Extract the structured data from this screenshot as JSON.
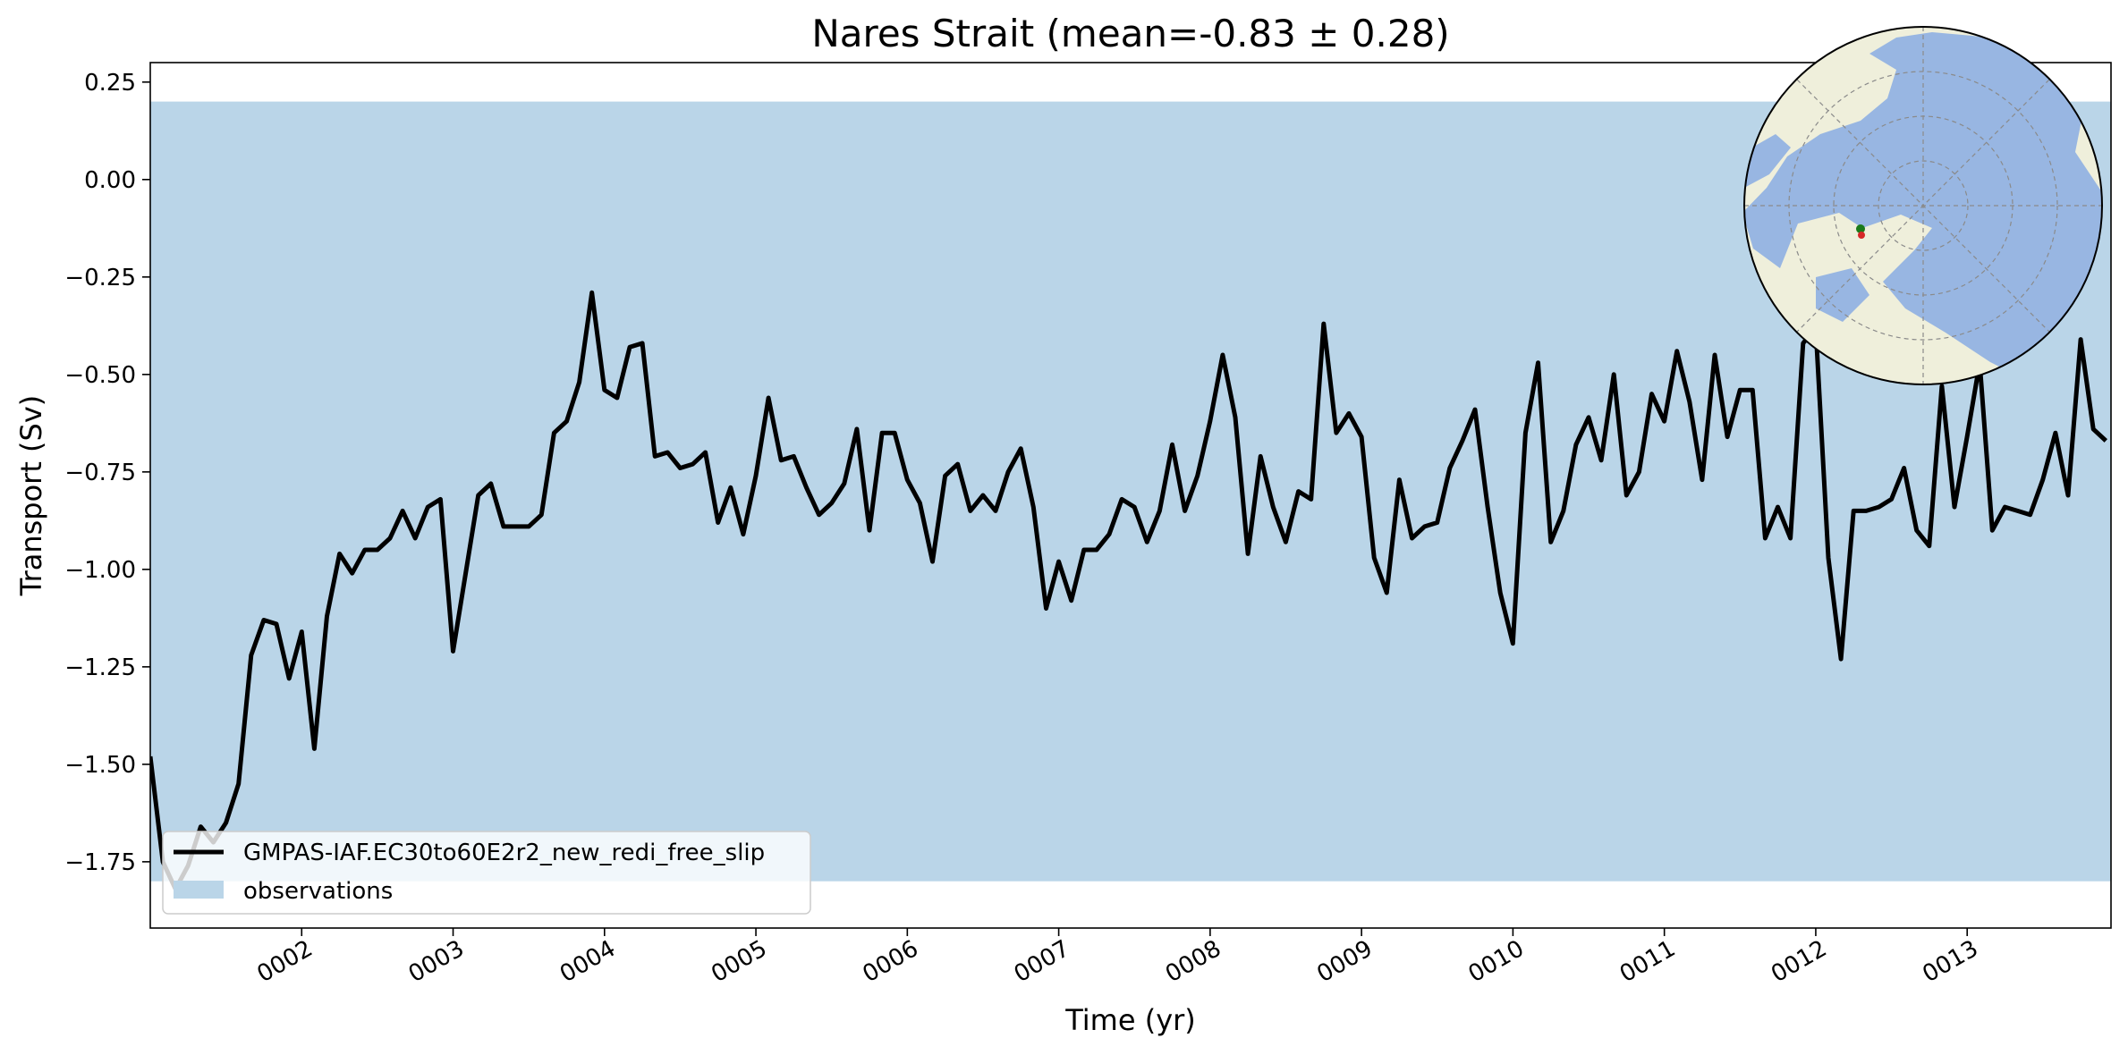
{
  "chart_data": {
    "type": "line",
    "title": "Nares Strait (mean=-0.83 ± 0.28)",
    "xlabel": "Time (yr)",
    "ylabel": "Transport (Sv)",
    "xlim": [
      1.0,
      13.95
    ],
    "ylim": [
      -1.92,
      0.3
    ],
    "x_ticks": [
      {
        "value": 2,
        "label": "0002"
      },
      {
        "value": 3,
        "label": "0003"
      },
      {
        "value": 4,
        "label": "0004"
      },
      {
        "value": 5,
        "label": "0005"
      },
      {
        "value": 6,
        "label": "0006"
      },
      {
        "value": 7,
        "label": "0007"
      },
      {
        "value": 8,
        "label": "0008"
      },
      {
        "value": 9,
        "label": "0009"
      },
      {
        "value": 10,
        "label": "0010"
      },
      {
        "value": 11,
        "label": "0011"
      },
      {
        "value": 12,
        "label": "0012"
      },
      {
        "value": 13,
        "label": "0013"
      }
    ],
    "y_ticks": [
      {
        "value": 0.25,
        "label": "0.25"
      },
      {
        "value": 0.0,
        "label": "0.00"
      },
      {
        "value": -0.25,
        "label": "−0.25"
      },
      {
        "value": -0.5,
        "label": "−0.50"
      },
      {
        "value": -0.75,
        "label": "−0.75"
      },
      {
        "value": -1.0,
        "label": "−1.00"
      },
      {
        "value": -1.25,
        "label": "−1.25"
      },
      {
        "value": -1.5,
        "label": "−1.50"
      },
      {
        "value": -1.75,
        "label": "−1.75"
      }
    ],
    "grid": false,
    "legend_position": "lower-left",
    "observation_band": {
      "name": "observations",
      "ymin": -1.8,
      "ymax": 0.2,
      "color": "#bad5e8"
    },
    "series": [
      {
        "name": "GMPAS-IAF.EC30to60E2r2_new_redi_free_slip",
        "color": "#000000",
        "x_start": 1.0,
        "x_step": 0.08333,
        "values": [
          -1.48,
          -1.75,
          -1.82,
          -1.76,
          -1.66,
          -1.7,
          -1.65,
          -1.55,
          -1.22,
          -1.13,
          -1.14,
          -1.28,
          -1.16,
          -1.46,
          -1.12,
          -0.96,
          -1.01,
          -0.95,
          -0.95,
          -0.92,
          -0.85,
          -0.92,
          -0.84,
          -0.82,
          -1.21,
          -1.01,
          -0.81,
          -0.78,
          -0.89,
          -0.89,
          -0.89,
          -0.86,
          -0.65,
          -0.62,
          -0.52,
          -0.29,
          -0.54,
          -0.56,
          -0.43,
          -0.42,
          -0.71,
          -0.7,
          -0.74,
          -0.73,
          -0.7,
          -0.88,
          -0.79,
          -0.91,
          -0.76,
          -0.56,
          -0.72,
          -0.71,
          -0.79,
          -0.86,
          -0.83,
          -0.78,
          -0.64,
          -0.9,
          -0.65,
          -0.65,
          -0.77,
          -0.83,
          -0.98,
          -0.76,
          -0.73,
          -0.85,
          -0.81,
          -0.85,
          -0.75,
          -0.69,
          -0.84,
          -1.1,
          -0.98,
          -1.08,
          -0.95,
          -0.95,
          -0.91,
          -0.82,
          -0.84,
          -0.93,
          -0.85,
          -0.68,
          -0.85,
          -0.76,
          -0.62,
          -0.45,
          -0.61,
          -0.96,
          -0.71,
          -0.84,
          -0.93,
          -0.8,
          -0.82,
          -0.37,
          -0.65,
          -0.6,
          -0.66,
          -0.97,
          -1.06,
          -0.77,
          -0.92,
          -0.89,
          -0.88,
          -0.74,
          -0.67,
          -0.59,
          -0.84,
          -1.06,
          -1.19,
          -0.65,
          -0.47,
          -0.93,
          -0.85,
          -0.68,
          -0.61,
          -0.72,
          -0.5,
          -0.81,
          -0.75,
          -0.55,
          -0.62,
          -0.44,
          -0.57,
          -0.77,
          -0.45,
          -0.66,
          -0.54,
          -0.54,
          -0.92,
          -0.84,
          -0.92,
          -0.42,
          -0.38,
          -0.97,
          -1.23,
          -0.85,
          -0.85,
          -0.84,
          -0.82,
          -0.74,
          -0.9,
          -0.94,
          -0.53,
          -0.84,
          -0.66,
          -0.47,
          -0.9,
          -0.84,
          -0.85,
          -0.86,
          -0.77,
          -0.65,
          -0.81,
          -0.41,
          -0.64,
          -0.67
        ]
      }
    ],
    "inset_map": {
      "projection": "polar-stereographic",
      "region": "Arctic",
      "ocean_color": "#98b6e2",
      "land_color": "#efefdb",
      "marker_colors": [
        "#1a7a1a",
        "#d62728"
      ]
    }
  }
}
